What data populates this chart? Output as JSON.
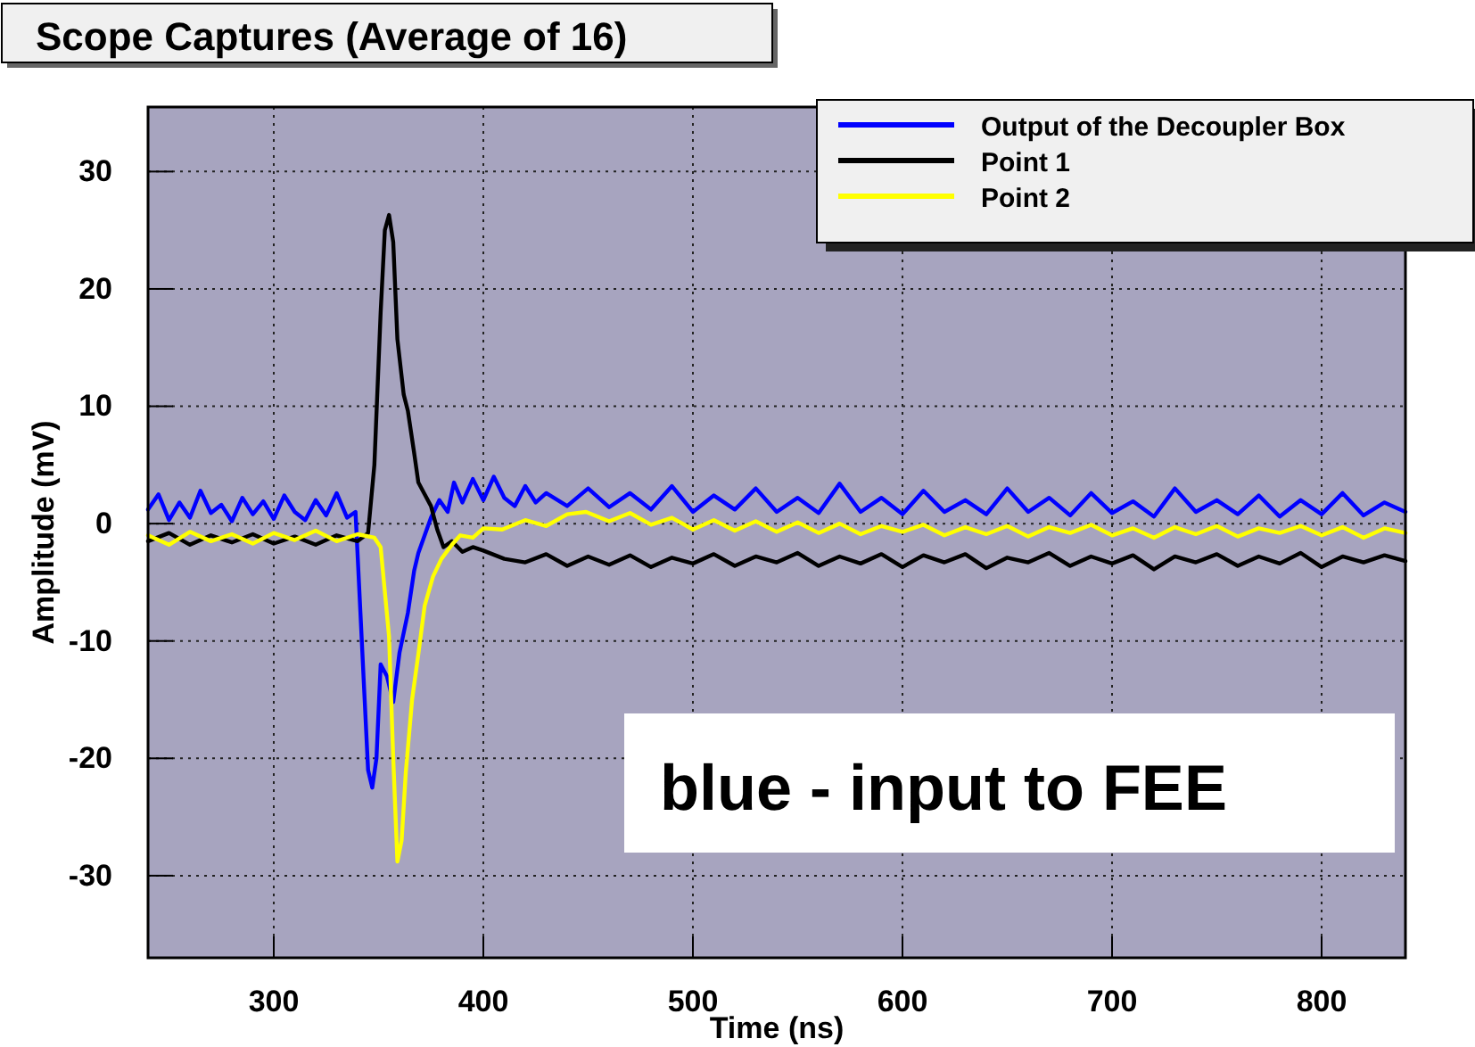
{
  "chart_data": {
    "type": "line",
    "title": "Scope Captures (Average of 16)",
    "xlabel": "Time (ns)",
    "ylabel": "Amplitude (mV)",
    "xlim": [
      240,
      840
    ],
    "xticks": [
      300,
      400,
      500,
      600,
      700,
      800
    ],
    "ylim": [
      -37,
      35.5
    ],
    "yticks": [
      -30,
      -20,
      -10,
      0,
      10,
      20,
      30
    ],
    "grid": true,
    "legend": "top right",
    "line_style": "solid",
    "annotations": [
      "blue - input to FEE"
    ],
    "series": [
      {
        "name": "Output of the Decoupler Box",
        "color": "#0000ff",
        "x": [
          240,
          245,
          250,
          255,
          260,
          265,
          270,
          275,
          280,
          285,
          290,
          295,
          300,
          305,
          310,
          315,
          320,
          325,
          330,
          335,
          339,
          342,
          345,
          347,
          349,
          351,
          354,
          357,
          360,
          364,
          367,
          369,
          372,
          375,
          379,
          383,
          386,
          390,
          395,
          400,
          405,
          410,
          415,
          420,
          425,
          430,
          440,
          450,
          460,
          470,
          480,
          490,
          500,
          510,
          520,
          530,
          540,
          550,
          560,
          570,
          580,
          590,
          600,
          610,
          620,
          630,
          640,
          650,
          660,
          670,
          680,
          690,
          700,
          710,
          720,
          730,
          740,
          750,
          760,
          770,
          780,
          790,
          800,
          810,
          820,
          830,
          840
        ],
        "values": [
          1.2,
          2.5,
          0.3,
          1.8,
          0.5,
          2.8,
          0.9,
          1.6,
          0.2,
          2.2,
          0.8,
          1.9,
          0.4,
          2.4,
          1.0,
          0.3,
          2.0,
          0.7,
          2.6,
          0.5,
          1.0,
          -10,
          -21,
          -22.5,
          -20,
          -12,
          -13,
          -15.2,
          -11,
          -7.6,
          -4,
          -2.5,
          -1,
          0.5,
          2.0,
          1.0,
          3.5,
          1.8,
          3.8,
          2.0,
          4.0,
          2.2,
          1.5,
          3.2,
          1.8,
          2.6,
          1.5,
          3.0,
          1.4,
          2.6,
          1.2,
          3.2,
          1.0,
          2.4,
          1.2,
          3.0,
          1.0,
          2.2,
          0.9,
          3.4,
          1.0,
          2.2,
          0.8,
          2.8,
          1.0,
          2.0,
          0.8,
          3.0,
          1.0,
          2.2,
          0.7,
          2.6,
          0.9,
          1.9,
          0.6,
          3.0,
          1.0,
          2.0,
          0.8,
          2.4,
          0.6,
          2.0,
          0.8,
          2.6,
          0.7,
          1.8,
          1.0
        ]
      },
      {
        "name": "Point 1",
        "color": "#000000",
        "x": [
          240,
          250,
          260,
          270,
          280,
          290,
          300,
          310,
          320,
          330,
          340,
          345,
          348,
          351,
          353,
          355,
          357,
          359,
          362,
          364,
          367,
          369,
          372,
          375,
          378,
          381,
          385,
          390,
          395,
          400,
          410,
          420,
          430,
          440,
          450,
          460,
          470,
          480,
          490,
          500,
          510,
          520,
          530,
          540,
          550,
          560,
          570,
          580,
          590,
          600,
          610,
          620,
          630,
          640,
          650,
          660,
          670,
          680,
          690,
          700,
          710,
          720,
          730,
          740,
          750,
          760,
          770,
          780,
          790,
          800,
          810,
          820,
          830,
          840
        ],
        "values": [
          -1.5,
          -0.8,
          -1.8,
          -1.0,
          -1.6,
          -0.9,
          -1.7,
          -1.1,
          -1.8,
          -1.0,
          -1.5,
          -0.8,
          5,
          18,
          25,
          26.3,
          24,
          15.7,
          11,
          9.6,
          6,
          3.5,
          2.5,
          1.5,
          -0.5,
          -2.0,
          -1.5,
          -2.4,
          -2.0,
          -2.3,
          -3.0,
          -3.3,
          -2.6,
          -3.6,
          -2.8,
          -3.5,
          -2.7,
          -3.7,
          -2.9,
          -3.4,
          -2.6,
          -3.6,
          -2.8,
          -3.3,
          -2.5,
          -3.6,
          -2.8,
          -3.4,
          -2.6,
          -3.7,
          -2.7,
          -3.3,
          -2.6,
          -3.8,
          -2.9,
          -3.3,
          -2.5,
          -3.6,
          -2.8,
          -3.4,
          -2.7,
          -3.9,
          -2.8,
          -3.3,
          -2.6,
          -3.6,
          -2.8,
          -3.4,
          -2.5,
          -3.7,
          -2.8,
          -3.3,
          -2.7,
          -3.2
        ]
      },
      {
        "name": "Point 2",
        "color": "#ffff00",
        "x": [
          240,
          250,
          260,
          270,
          280,
          290,
          300,
          310,
          320,
          330,
          340,
          348,
          351,
          355,
          357,
          359,
          361,
          363,
          366,
          369,
          372,
          376,
          380,
          385,
          389,
          395,
          400,
          409,
          420,
          430,
          440,
          449,
          460,
          470,
          480,
          490,
          500,
          510,
          520,
          530,
          540,
          550,
          560,
          570,
          580,
          590,
          600,
          610,
          620,
          630,
          640,
          650,
          660,
          670,
          680,
          690,
          700,
          710,
          720,
          730,
          740,
          750,
          760,
          770,
          780,
          790,
          800,
          810,
          820,
          830,
          840
        ],
        "values": [
          -1.0,
          -1.8,
          -0.7,
          -1.5,
          -0.9,
          -1.7,
          -0.8,
          -1.4,
          -0.6,
          -1.5,
          -0.9,
          -1.2,
          -2,
          -9.6,
          -20,
          -28.8,
          -27,
          -21.2,
          -15,
          -11.1,
          -7,
          -4.5,
          -3,
          -1.8,
          -1.0,
          -1.2,
          -0.4,
          -0.5,
          0.3,
          -0.2,
          0.8,
          1.0,
          0.2,
          0.9,
          -0.1,
          0.5,
          -0.5,
          0.3,
          -0.6,
          0.2,
          -0.7,
          0.1,
          -0.8,
          0.0,
          -0.9,
          -0.2,
          -0.7,
          -0.1,
          -1.0,
          -0.3,
          -0.9,
          -0.2,
          -1.1,
          -0.3,
          -0.8,
          -0.1,
          -1.0,
          -0.4,
          -1.2,
          -0.3,
          -0.9,
          -0.2,
          -1.1,
          -0.4,
          -0.8,
          -0.2,
          -1.0,
          -0.3,
          -1.2,
          -0.4,
          -0.8
        ]
      }
    ]
  }
}
